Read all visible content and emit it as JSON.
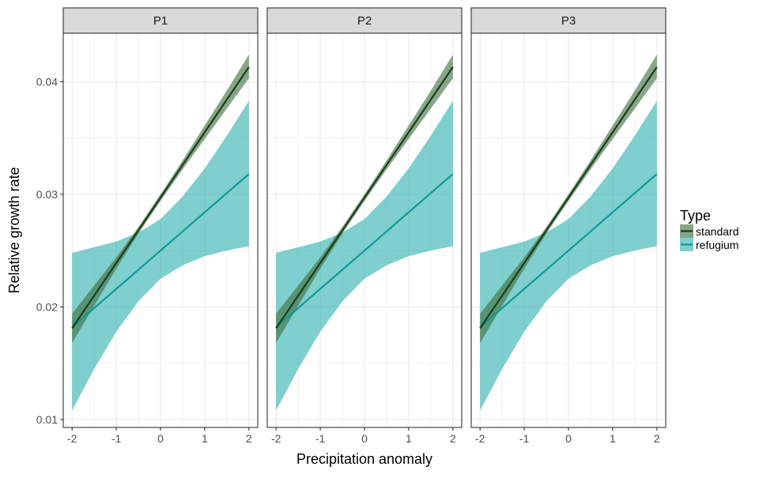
{
  "chart_data": {
    "type": "line",
    "xlabel": "Precipitation anomaly",
    "ylabel": "Relative growth rate",
    "xlim": [
      -2.2,
      2.2
    ],
    "ylim": [
      0.0093,
      0.0443
    ],
    "x_ticks": [
      -2,
      -1,
      0,
      1,
      2
    ],
    "x_tick_labels": [
      "-2",
      "-1",
      "0",
      "1",
      "2"
    ],
    "y_ticks": [
      0.01,
      0.02,
      0.03,
      0.04
    ],
    "y_tick_labels": [
      "0.01",
      "0.02",
      "0.03",
      "0.04"
    ],
    "grid": true,
    "panels": [
      "P1",
      "P2",
      "P3"
    ],
    "legend": {
      "title": "Type",
      "position": "right",
      "entries": [
        "standard",
        "refugium"
      ]
    },
    "colors": {
      "standard_line": "#1b3d1b",
      "standard_band": "#3f6f3f",
      "refugium_line": "#109a98",
      "refugium_band": "#2eb1b0",
      "strip_fill": "#d9d9d9",
      "grid": "#ebebeb"
    },
    "x": [
      -2,
      -1.5,
      -1,
      -0.5,
      0,
      0.5,
      1,
      1.5,
      2
    ],
    "series": [
      {
        "name": "standard",
        "values": [
          0.0181,
          0.021,
          0.0239,
          0.0268,
          0.0297,
          0.0326,
          0.0355,
          0.0384,
          0.0413
        ],
        "lower": [
          0.0168,
          0.0201,
          0.0234,
          0.0265,
          0.0294,
          0.0322,
          0.0349,
          0.0376,
          0.0403
        ],
        "upper": [
          0.0194,
          0.0219,
          0.0244,
          0.0271,
          0.03,
          0.033,
          0.0361,
          0.0392,
          0.0424
        ]
      },
      {
        "name": "refugium",
        "values": [
          0.0182,
          0.0199,
          0.0216,
          0.0233,
          0.025,
          0.0267,
          0.0284,
          0.0301,
          0.0318
        ],
        "lower": [
          0.0108,
          0.0145,
          0.0178,
          0.0205,
          0.0225,
          0.0237,
          0.0245,
          0.025,
          0.0254
        ],
        "upper": [
          0.0248,
          0.0253,
          0.0258,
          0.0266,
          0.0278,
          0.0298,
          0.0323,
          0.0352,
          0.0383
        ]
      }
    ]
  }
}
